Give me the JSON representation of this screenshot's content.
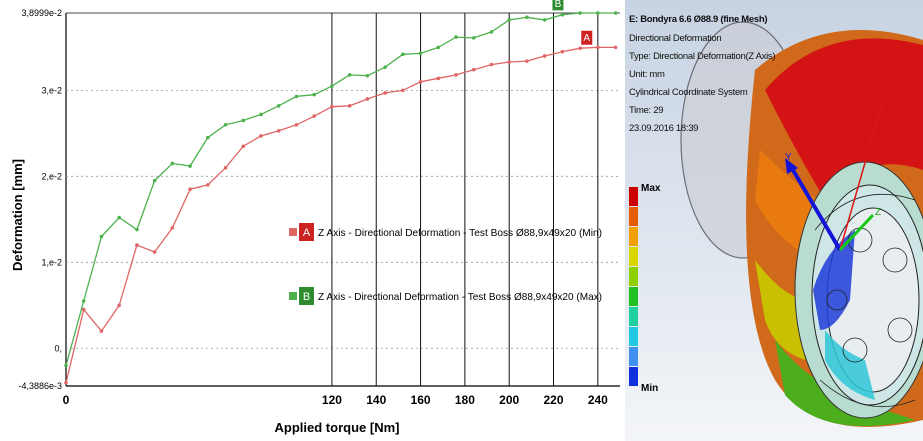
{
  "chart_data": {
    "type": "line",
    "xlabel": "Applied torque [Nm]",
    "ylabel": "Deformation [mm]",
    "xlim": [
      0,
      250
    ],
    "ylim": [
      -0.0043886,
      0.038999
    ],
    "y_ticks": [
      {
        "value": 0.038999,
        "label": "3,8999e-2"
      },
      {
        "value": 0.03,
        "label": "3,e-2"
      },
      {
        "value": 0.02,
        "label": "2,e-2"
      },
      {
        "value": 0.01,
        "label": "1,e-2"
      },
      {
        "value": 0.0,
        "label": "0,"
      },
      {
        "value": -0.0043886,
        "label": "-4,3886e-3"
      }
    ],
    "x_ticks": [
      {
        "value": 0,
        "label": "0"
      },
      {
        "value": 120,
        "label": "120"
      },
      {
        "value": 140,
        "label": "140"
      },
      {
        "value": 160,
        "label": "160"
      },
      {
        "value": 180,
        "label": "180"
      },
      {
        "value": 200,
        "label": "200"
      },
      {
        "value": 220,
        "label": "220"
      },
      {
        "value": 240,
        "label": "240"
      }
    ],
    "vertical_gridlines": [
      120,
      140,
      160,
      180,
      200,
      220,
      240
    ],
    "series": [
      {
        "name": "Z Axis - Directional Deformation - Test Boss Ø88,9x49x20 (Min)",
        "marker": "A",
        "color": "#e06666",
        "x": [
          0,
          8,
          16,
          24,
          32,
          40,
          48,
          56,
          64,
          72,
          80,
          88,
          96,
          104,
          112,
          120,
          128,
          136,
          144,
          152,
          160,
          168,
          176,
          184,
          192,
          200,
          208,
          216,
          224,
          232,
          240,
          248
        ],
        "y": [
          -0.004,
          0.0045,
          0.002,
          0.005,
          0.012,
          0.0112,
          0.014,
          0.0185,
          0.019,
          0.021,
          0.0235,
          0.0247,
          0.0253,
          0.026,
          0.027,
          0.0281,
          0.0282,
          0.029,
          0.0297,
          0.03,
          0.031,
          0.0314,
          0.0318,
          0.0324,
          0.033,
          0.0333,
          0.0334,
          0.034,
          0.0345,
          0.0349,
          0.035,
          0.035
        ]
      },
      {
        "name": "Z Axis - Directional Deformation - Test Boss Ø88,9x49x20 (Max)",
        "marker": "B",
        "color": "#4db24d",
        "x": [
          0,
          8,
          16,
          24,
          32,
          40,
          48,
          56,
          64,
          72,
          80,
          88,
          96,
          104,
          112,
          120,
          128,
          136,
          144,
          152,
          160,
          168,
          176,
          184,
          192,
          200,
          208,
          216,
          224,
          232,
          240,
          248
        ],
        "y": [
          -0.002,
          0.0055,
          0.013,
          0.0152,
          0.0138,
          0.0195,
          0.0215,
          0.0212,
          0.0245,
          0.026,
          0.0265,
          0.0272,
          0.0282,
          0.0293,
          0.0295,
          0.0305,
          0.0318,
          0.0317,
          0.0327,
          0.0342,
          0.0343,
          0.035,
          0.0362,
          0.0361,
          0.0368,
          0.0382,
          0.0385,
          0.0382,
          0.0388,
          0.039,
          0.039,
          0.039
        ]
      }
    ],
    "markers": [
      {
        "label": "A",
        "x": 235,
        "y": 0.0349,
        "color": "#cc2222"
      },
      {
        "label": "B",
        "x": 222,
        "y": 0.0389,
        "color": "#2e8b2e"
      }
    ],
    "legend_placement": "center-right",
    "grid": "dashed horizontal, solid vertical"
  },
  "simulation": {
    "info_lines": [
      "E: Bondyra 6.6 Ø88.9 (fine Mesh)",
      "Directional Deformation",
      "Type: Directional Deformation(Z Axis)",
      "Unit: mm",
      "Cylindrical Coordinate System",
      "Time: 29",
      "23.09.2016 18:39"
    ],
    "legend_max_label": "Max",
    "legend_min_label": "Min",
    "legend_colors": [
      "#cc0000",
      "#e65c00",
      "#f0a000",
      "#d8d800",
      "#8fd000",
      "#20c020",
      "#20d0a0",
      "#20c8e0",
      "#4090f0",
      "#1030e0"
    ],
    "axis_labels": {
      "x": "X",
      "y": "Y",
      "z": "Z"
    }
  }
}
